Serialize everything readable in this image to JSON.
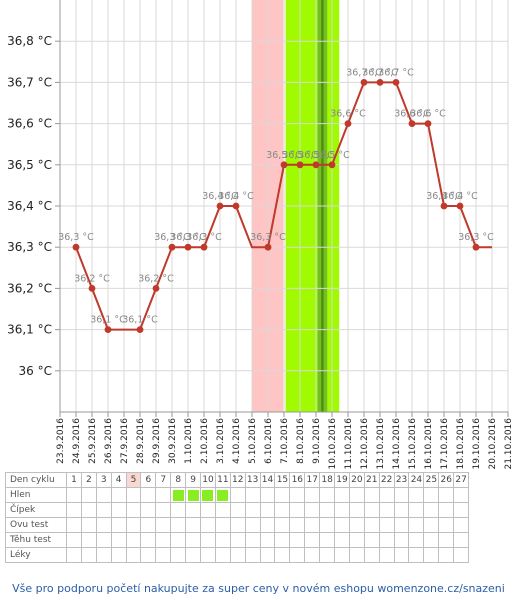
{
  "chart_data": {
    "type": "line",
    "title": "",
    "xlabel": "",
    "ylabel": "",
    "ylim": [
      35.9,
      36.9
    ],
    "y_ticks": [
      36.0,
      36.1,
      36.2,
      36.3,
      36.4,
      36.5,
      36.6,
      36.7,
      36.8
    ],
    "y_tick_labels": [
      "36 °C",
      "36,1 °C",
      "36,2 °C",
      "36,3 °C",
      "36,4 °C",
      "36,5 °C",
      "36,6 °C",
      "36,7 °C",
      "36,8 °C"
    ],
    "x": [
      "23.9.2016",
      "24.9.2016",
      "25.9.2016",
      "26.9.2016",
      "27.9.2016",
      "28.9.2016",
      "29.9.2016",
      "30.9.2016",
      "1.10.2016",
      "2.10.2016",
      "3.10.2016",
      "4.10.2016",
      "5.10.2016",
      "6.10.2016",
      "7.10.2016",
      "8.10.2016",
      "9.10.2016",
      "10.10.2016",
      "11.10.2016",
      "12.10.2016",
      "13.10.2016",
      "14.10.2016",
      "15.10.2016",
      "16.10.2016",
      "17.10.2016",
      "18.10.2016",
      "19.10.2016",
      "20.10.2016",
      "21.10.2016"
    ],
    "series": [
      {
        "values": [
          null,
          36.3,
          36.2,
          36.1,
          36.1,
          36.1,
          36.2,
          36.3,
          36.3,
          36.3,
          36.4,
          36.4,
          36.3,
          36.3,
          36.5,
          36.5,
          36.5,
          36.5,
          36.6,
          36.7,
          36.7,
          36.7,
          36.6,
          36.6,
          36.4,
          36.4,
          36.3,
          36.3,
          null
        ],
        "markers": [
          false,
          true,
          true,
          true,
          false,
          true,
          true,
          true,
          true,
          true,
          true,
          true,
          false,
          true,
          true,
          true,
          true,
          true,
          true,
          true,
          true,
          true,
          true,
          true,
          true,
          true,
          true,
          false,
          false
        ],
        "labels": [
          "",
          "36,3 °C",
          "36,2 °C",
          "36,1 °C",
          "",
          "36,1 °C",
          "36,2 °C",
          "36,3 °C",
          "36,3 °C",
          "36,3 °C",
          "36,4 °C",
          "36,4 °C",
          "",
          "36,3 °C",
          "36,5 °C",
          "36,5 °C",
          "36,5 °C",
          "36,5 °C",
          "36,6 °C",
          "36,7 °C",
          "36,7 °C",
          "36,7 °C",
          "36,6 °C",
          "36,6 °C",
          "36,4 °C",
          "36,4 °C",
          "36,3 °C",
          "",
          ""
        ],
        "color": "#c0392b"
      }
    ],
    "bands": [
      {
        "from": 24,
        "to": 27.9,
        "color": "#ffc4c4"
      },
      {
        "from": 28.2,
        "to": 34.9,
        "color": "#a0fa00"
      },
      {
        "from": 32.2,
        "to": 33.4,
        "color": "#73c020"
      },
      {
        "from": 32.65,
        "to": 32.95,
        "color": "#4f8d12"
      }
    ],
    "grid": true
  },
  "table": {
    "rows": [
      {
        "label": "Den cyklu",
        "cells": [
          "1",
          "2",
          "3",
          "4",
          "5",
          "6",
          "7",
          "8",
          "9",
          "10",
          "11",
          "12",
          "13",
          "14",
          "15",
          "16",
          "17",
          "18",
          "19",
          "20",
          "21",
          "22",
          "23",
          "24",
          "25",
          "26",
          "27"
        ]
      },
      {
        "label": "Hlen",
        "marks": [
          false,
          false,
          false,
          false,
          false,
          false,
          false,
          true,
          true,
          true,
          true,
          false,
          false,
          false,
          false,
          false,
          false,
          false,
          false,
          false,
          false,
          false,
          false,
          false,
          false,
          false,
          false
        ]
      },
      {
        "label": "Čípek",
        "marks": []
      },
      {
        "label": "Ovu test",
        "marks": []
      },
      {
        "label": "Těhu test",
        "marks": []
      },
      {
        "label": "Léky",
        "marks": []
      }
    ],
    "highlight_day": 5,
    "mark_color": "#88ee22"
  },
  "footer": "Vše pro podporu početí nakupujte za super ceny v novém eshopu womenzone.cz/snazeni"
}
